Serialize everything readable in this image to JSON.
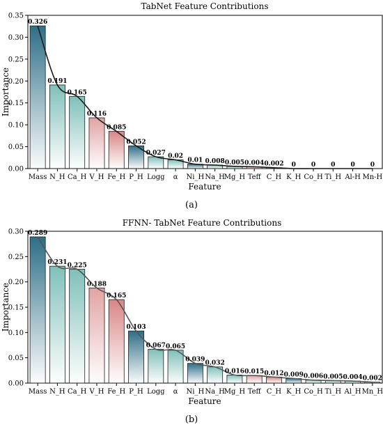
{
  "chart_data": [
    {
      "type": "bar",
      "title": "TabNet Feature Contributions",
      "xlabel": "Feature",
      "ylabel": "Importance",
      "ylim": [
        0,
        0.35
      ],
      "yticks": [
        "0.00",
        "0.05",
        "0.10",
        "0.15",
        "0.20",
        "0.25",
        "0.30",
        "0.35"
      ],
      "categories": [
        "Mass",
        "N_H",
        "Ca_H",
        "V_H",
        "Fe_H",
        "P_H",
        "Logg",
        "α",
        "Ni_H",
        "Na_H",
        "Mg_H",
        "Teff",
        "C_H",
        "K_H",
        "Co_H",
        "Ti_H",
        "Al-H",
        "Mn-H"
      ],
      "values": [
        0.326,
        0.191,
        0.165,
        0.116,
        0.085,
        0.052,
        0.027,
        0.02,
        0.01,
        0.008,
        0.005,
        0.004,
        0.002,
        0,
        0,
        0,
        0,
        0
      ],
      "value_labels": [
        "0.326",
        "0.191",
        "0.165",
        "0.116",
        "0.085",
        "0.052",
        "0.027",
        "0.02",
        "0.01",
        "0.008",
        "0.005",
        "0.004",
        "0.002",
        "0",
        "0",
        "0",
        "0",
        "0"
      ],
      "bar_colors": [
        "#2e6e86",
        "#7fc0b9",
        "#7fc0b9",
        "#e2a3a3",
        "#d98585",
        "#2e6e86",
        "#7fc0b9",
        "#7fc0b9",
        "#2e6e86",
        "#7fc0b9",
        "#7fc0b9",
        "#e2a3a3",
        "#d98585",
        "#2e6e86",
        "#7fc0b9",
        "#7fc0b9",
        "#7fc0b9",
        "#7fc0b9"
      ],
      "line_color": "#1a1a1a",
      "caption": "(a)"
    },
    {
      "type": "bar",
      "title": "FFNN- TabNet Feature Contributions",
      "xlabel": "Feature",
      "ylabel": "Importance",
      "ylim": [
        0,
        0.3
      ],
      "yticks": [
        "0.00",
        "0.05",
        "0.10",
        "0.15",
        "0.20",
        "0.25",
        "0.30"
      ],
      "categories": [
        "Mass",
        "N_H",
        "Ca_H",
        "V_H",
        "Fe_H",
        "P_H",
        "Logg",
        "α",
        "Ni_H",
        "Na_H",
        "Mg_H",
        "Teff",
        "C_H",
        "K_H",
        "Co_H",
        "Ti_H",
        "Al_H",
        "Mn_H"
      ],
      "values": [
        0.289,
        0.231,
        0.225,
        0.188,
        0.165,
        0.103,
        0.067,
        0.065,
        0.039,
        0.032,
        0.016,
        0.015,
        0.012,
        0.009,
        0.006,
        0.005,
        0.004,
        0.002
      ],
      "value_labels": [
        "0.289",
        "0.231",
        "0.225",
        "0.188",
        "0.165",
        "0.103",
        "0.067",
        "0.065",
        "0.039",
        "0.032",
        "0.016",
        "0.015",
        "0.012",
        "0.009",
        "0.006",
        "0.005",
        "0.004",
        "0.002"
      ],
      "bar_colors": [
        "#2e6e86",
        "#7fc0b9",
        "#7fc0b9",
        "#e2a3a3",
        "#d98585",
        "#2e6e86",
        "#7fc0b9",
        "#7fc0b9",
        "#2e6e86",
        "#7fc0b9",
        "#7fc0b9",
        "#e2a3a3",
        "#d98585",
        "#2e6e86",
        "#7fc0b9",
        "#7fc0b9",
        "#7fc0b9",
        "#7fc0b9"
      ],
      "line_color": "#555555",
      "caption": "(b)"
    }
  ]
}
